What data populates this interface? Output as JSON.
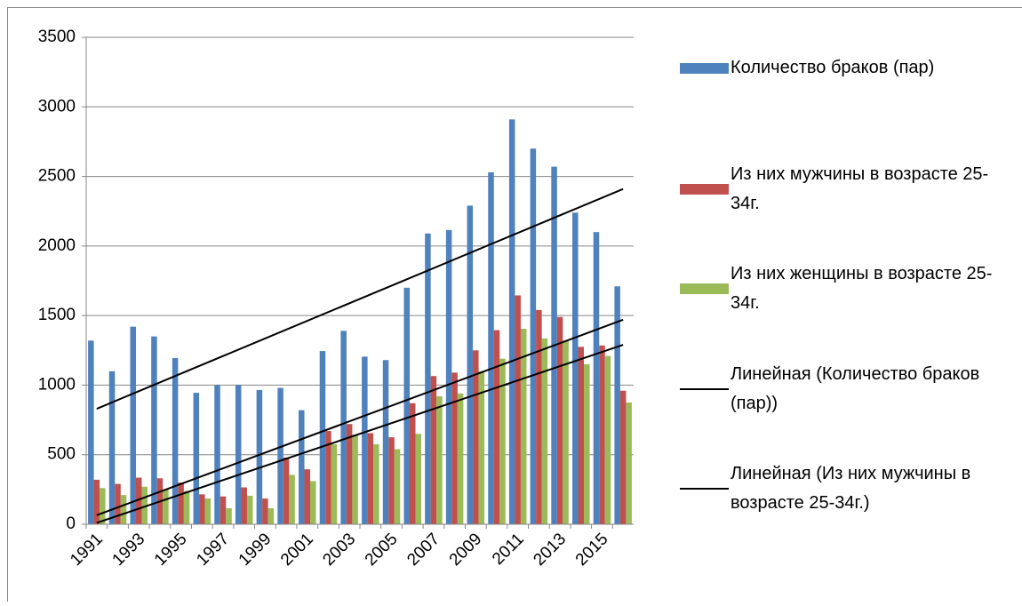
{
  "chart_data": {
    "type": "bar",
    "categories": [
      "1991",
      null,
      "1993",
      null,
      "1995",
      null,
      "1997",
      null,
      "1999",
      null,
      "2001",
      null,
      "2003",
      null,
      "2005",
      null,
      "2007",
      null,
      "2009",
      null,
      "2011",
      null,
      "2013",
      null,
      "2015",
      null
    ],
    "series": [
      {
        "name": "Количество браков (пар)",
        "color": "#4f81bd",
        "values": [
          1320,
          1100,
          1420,
          1350,
          1195,
          945,
          1000,
          1000,
          965,
          980,
          820,
          1245,
          1390,
          1205,
          1180,
          1700,
          2090,
          2115,
          2290,
          2530,
          2910,
          2700,
          2570,
          2240,
          2100,
          1710
        ]
      },
      {
        "name": "Из них мужчины в возрасте 25-34г.",
        "color": "#c0504d",
        "values": [
          320,
          290,
          335,
          330,
          300,
          215,
          200,
          265,
          185,
          480,
          395,
          670,
          720,
          655,
          625,
          870,
          1065,
          1090,
          1250,
          1395,
          1645,
          1540,
          1490,
          1275,
          1285,
          960
        ]
      },
      {
        "name": "Из них женщины в возрасте 25-34г.",
        "color": "#9bbb59",
        "values": [
          260,
          210,
          270,
          250,
          240,
          185,
          115,
          205,
          115,
          355,
          310,
          575,
          645,
          575,
          540,
          650,
          920,
          940,
          1100,
          1190,
          1405,
          1335,
          1320,
          1150,
          1210,
          875
        ]
      }
    ],
    "trendlines": [
      {
        "name": "Линейная (Количество браков (пар))",
        "color": "#000000",
        "values": [
          830,
          2410
        ]
      },
      {
        "name": "Линейная (Из них мужчины в возрасте 25-34г.)",
        "color": "#000000",
        "values": [
          65,
          1470
        ]
      },
      {
        "color": "#000000",
        "values": [
          10,
          1290
        ]
      }
    ],
    "ylim": [
      0,
      3500
    ],
    "yticks": [
      0,
      500,
      1000,
      1500,
      2000,
      2500,
      3000,
      3500
    ],
    "grid": true,
    "legend": "right"
  }
}
